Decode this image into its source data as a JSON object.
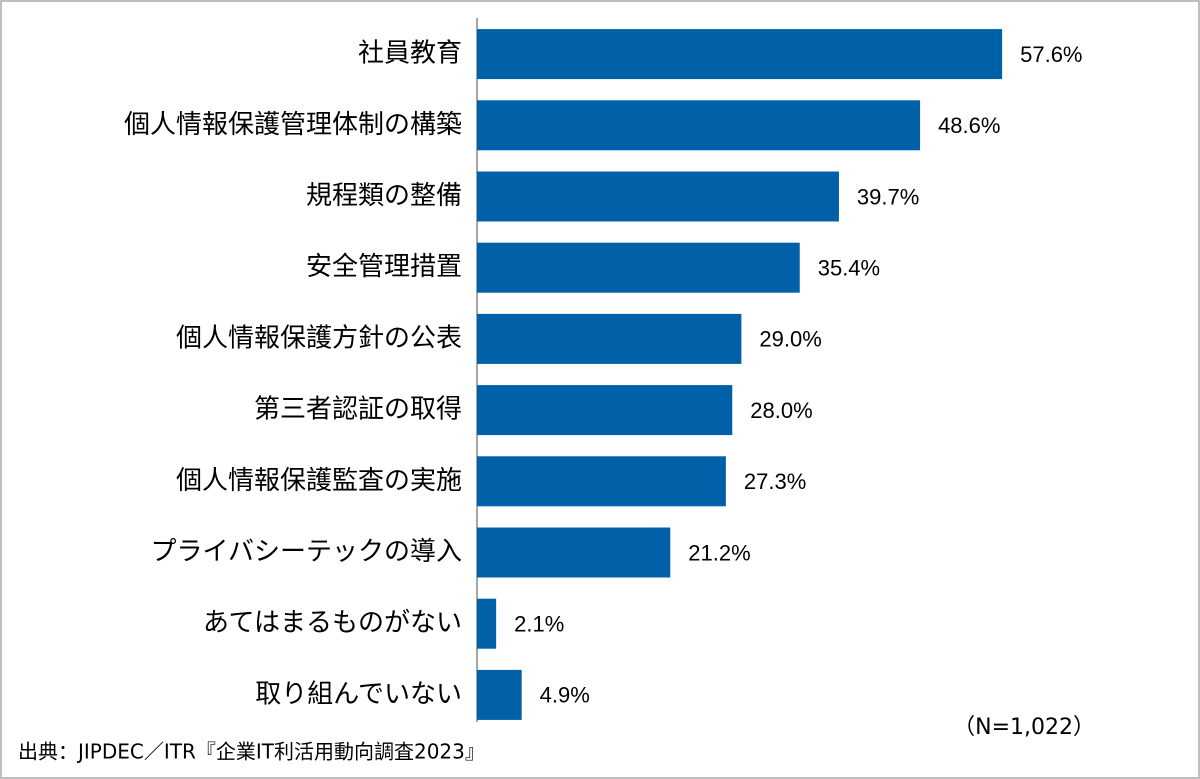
{
  "chart_data": {
    "type": "bar",
    "orientation": "horizontal",
    "categories": [
      "社員教育",
      "個人情報保護管理体制の構築",
      "規程類の整備",
      "安全管理措置",
      "個人情報保護方針の公表",
      "第三者認証の取得",
      "個人情報保護監査の実施",
      "プライバシーテックの導入",
      "あてはまるものがない",
      "取り組んでいない"
    ],
    "values": [
      57.6,
      48.6,
      39.7,
      35.4,
      29.0,
      28.0,
      27.3,
      21.2,
      2.1,
      4.9
    ],
    "value_labels": [
      "57.6%",
      "48.6%",
      "39.7%",
      "35.4%",
      "29.0%",
      "28.0%",
      "27.3%",
      "21.2%",
      "2.1%",
      "4.9%"
    ],
    "color": "#0060a8",
    "xlim": [
      0,
      60
    ],
    "note": "（N=1,022）",
    "source": "出典：JIPDEC／ITR『企業IT利活用動向調査2023』"
  }
}
